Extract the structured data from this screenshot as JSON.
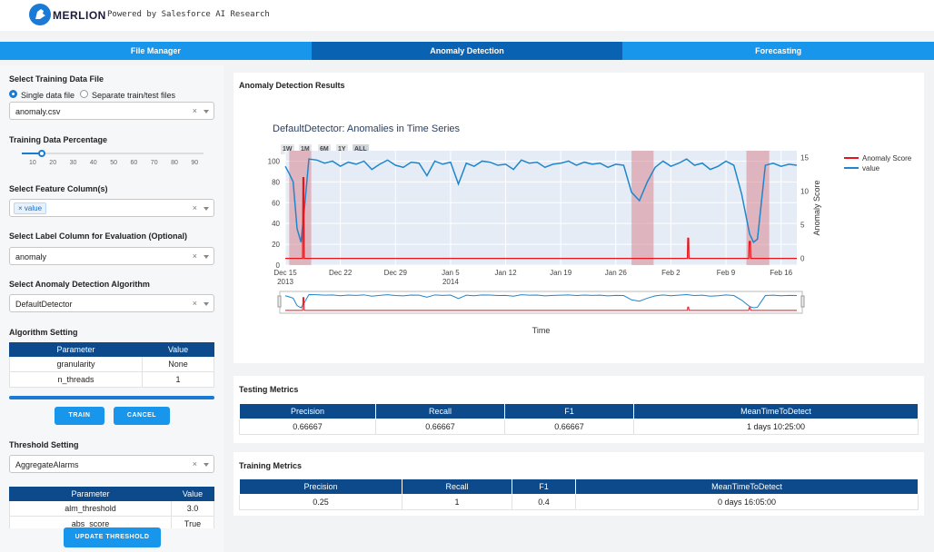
{
  "header": {
    "app_name": "MERLION",
    "powered_by": "Powered by Salesforce AI Research"
  },
  "tabs": [
    "File Manager",
    "Anomaly Detection",
    "Forecasting"
  ],
  "active_tab": 1,
  "sidebar": {
    "training_file_label": "Select Training Data File",
    "radio_single": "Single data file",
    "radio_separate": "Separate train/test files",
    "file_value": "anomaly.csv",
    "clear_symbol": "×",
    "percentage_label": "Training Data Percentage",
    "percentage_value": 10,
    "percentage_ticks": [
      "10",
      "20",
      "30",
      "40",
      "50",
      "60",
      "70",
      "80",
      "90"
    ],
    "feature_label": "Select Feature Column(s)",
    "feature_tag": "value",
    "label_col_label": "Select Label Column for Evaluation (Optional)",
    "label_col_value": "anomaly",
    "algo_label": "Select Anomaly Detection Algorithm",
    "algo_value": "DefaultDetector",
    "algo_setting_label": "Algorithm Setting",
    "param_header": "Parameter",
    "value_header": "Value",
    "algo_params": [
      {
        "name": "granularity",
        "value": "None"
      },
      {
        "name": "n_threads",
        "value": "1"
      }
    ],
    "train_button": "TRAIN",
    "cancel_button": "CANCEL",
    "threshold_label": "Threshold Setting",
    "threshold_value": "AggregateAlarms",
    "threshold_params": [
      {
        "name": "alm_threshold",
        "value": "3.0"
      },
      {
        "name": "abs_score",
        "value": "True"
      }
    ],
    "update_button": "UPDATE THRESHOLD"
  },
  "results": {
    "title": "Anomaly Detection Results",
    "chart_title": "DefaultDetector: Anomalies in Time Series",
    "range_buttons": [
      "1W",
      "1M",
      "6M",
      "1Y",
      "ALL"
    ]
  },
  "chart_data": {
    "type": "line",
    "xlabel": "Time",
    "y2label": "Anomaly Score",
    "ylim": [
      0,
      110
    ],
    "y2lim": [
      -1,
      16
    ],
    "yticks": [
      "100",
      "80",
      "60",
      "40",
      "20",
      "0"
    ],
    "y2ticks": [
      "15",
      "10",
      "5",
      "0"
    ],
    "xticks": [
      {
        "l1": "Dec 15",
        "l2": "2013"
      },
      {
        "l1": "Dec 22",
        "l2": ""
      },
      {
        "l1": "Dec 29",
        "l2": ""
      },
      {
        "l1": "Jan 5",
        "l2": "2014"
      },
      {
        "l1": "Jan 12",
        "l2": ""
      },
      {
        "l1": "Jan 19",
        "l2": ""
      },
      {
        "l1": "Jan 26",
        "l2": ""
      },
      {
        "l1": "Feb 2",
        "l2": ""
      },
      {
        "l1": "Feb 9",
        "l2": ""
      },
      {
        "l1": "Feb 16",
        "l2": ""
      }
    ],
    "anomaly_regions_days": [
      [
        0.5,
        3.3
      ],
      [
        44.0,
        46.8
      ],
      [
        58.6,
        61.5
      ]
    ],
    "series": [
      {
        "name": "Anomaly Score",
        "color": "#e4161c",
        "x_days": [
          0,
          2.2,
          2.25,
          2.35,
          2.4,
          51.1,
          51.15,
          51.25,
          51.3,
          58.9,
          58.95,
          59.1,
          59.15,
          65
        ],
        "values": [
          0,
          0,
          12,
          12,
          0,
          0,
          3,
          3,
          0,
          0,
          2.5,
          2.5,
          0,
          0
        ]
      },
      {
        "name": "value",
        "color": "#1f86cc",
        "x_days": [
          0,
          0.5,
          1,
          1.5,
          2,
          2.5,
          3,
          4,
          5,
          6,
          7,
          8,
          9,
          10,
          11,
          12,
          13,
          14,
          15,
          16,
          17,
          18,
          19,
          20,
          21,
          22,
          23,
          24,
          25,
          26,
          27,
          28,
          29,
          30,
          31,
          32,
          33,
          34,
          35,
          36,
          37,
          38,
          39,
          40,
          41,
          42,
          43,
          44,
          45,
          46,
          47,
          48,
          49,
          50,
          51,
          52,
          53,
          54,
          55,
          56,
          57,
          58,
          59,
          59.5,
          60,
          61,
          62,
          63,
          64,
          65
        ],
        "values": [
          95,
          88,
          80,
          35,
          22,
          60,
          102,
          101,
          98,
          100,
          95,
          99,
          97,
          100,
          92,
          97,
          101,
          96,
          94,
          99,
          98,
          86,
          100,
          97,
          99,
          78,
          98,
          95,
          100,
          99,
          96,
          97,
          92,
          101,
          98,
          99,
          94,
          97,
          98,
          100,
          96,
          99,
          97,
          98,
          94,
          97,
          96,
          70,
          62,
          80,
          94,
          100,
          95,
          98,
          102,
          96,
          98,
          92,
          95,
          100,
          96,
          68,
          30,
          22,
          25,
          96,
          98,
          95,
          97,
          96
        ]
      }
    ]
  },
  "testing_metrics": {
    "title": "Testing Metrics",
    "headers": [
      "Precision",
      "Recall",
      "F1",
      "MeanTimeToDetect"
    ],
    "row": [
      "0.66667",
      "0.66667",
      "0.66667",
      "1 days 10:25:00"
    ]
  },
  "training_metrics": {
    "title": "Training Metrics",
    "headers": [
      "Precision",
      "Recall",
      "F1",
      "MeanTimeToDetect"
    ],
    "row": [
      "0.25",
      "1",
      "0.4",
      "0 days 16:05:00"
    ]
  }
}
